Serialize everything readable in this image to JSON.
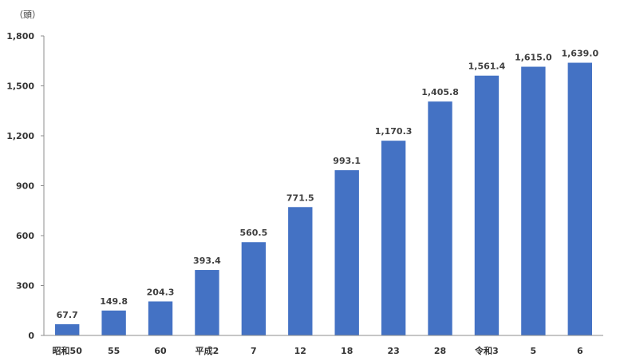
{
  "chart_data": {
    "type": "bar",
    "unit_label": "（頭）",
    "title": "",
    "xlabel": "",
    "ylabel": "",
    "categories": [
      "昭和50",
      "55",
      "60",
      "平成2",
      "7",
      "12",
      "18",
      "23",
      "28",
      "令和3",
      "5",
      "6"
    ],
    "values": [
      67.7,
      149.8,
      204.3,
      393.4,
      560.5,
      771.5,
      993.1,
      1170.3,
      1405.8,
      1561.4,
      1615.0,
      1639.0
    ],
    "data_labels": [
      "67.7",
      "149.8",
      "204.3",
      "393.4",
      "560.5",
      "771.5",
      "993.1",
      "1,170.3",
      "1,405.8",
      "1,561.4",
      "1,615.0",
      "1,639.0"
    ],
    "ylim": [
      0,
      1800
    ],
    "yticks": [
      0,
      300,
      600,
      900,
      1200,
      1500,
      1800
    ],
    "ytick_labels": [
      "0",
      "300",
      "600",
      "900",
      "1,200",
      "1,500",
      "1,800"
    ],
    "bar_color": "#4472C4",
    "grid": false,
    "legend": "none"
  }
}
